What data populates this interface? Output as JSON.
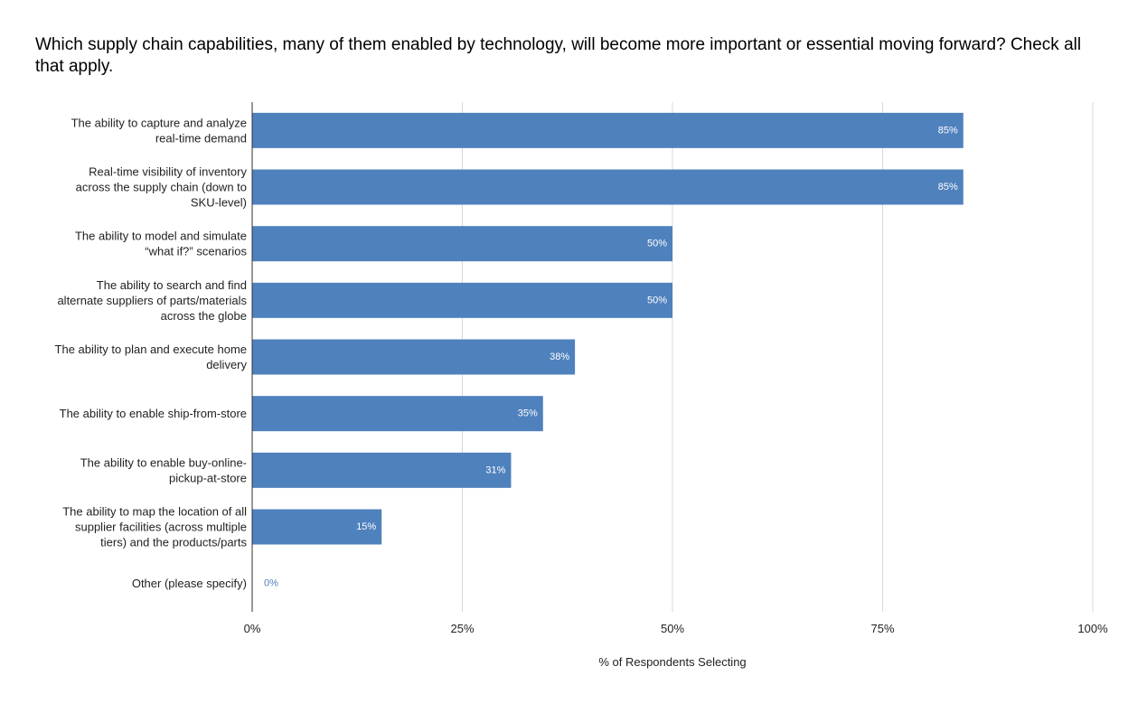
{
  "chart_data": {
    "type": "bar",
    "orientation": "horizontal",
    "title": "Which supply chain capabilities, many of them enabled by technology, will become more important or essential moving forward? Check all that apply.",
    "xlabel": "% of Respondents Selecting",
    "ylabel": "",
    "xlim": [
      0,
      100
    ],
    "x_ticks": [
      "0%",
      "25%",
      "50%",
      "75%",
      "100%"
    ],
    "x_tick_values": [
      0,
      25,
      50,
      75,
      100
    ],
    "grid": true,
    "bar_color": "#4f81bd",
    "categories": [
      [
        "The ability to capture and analyze",
        "real-time demand"
      ],
      [
        "Real-time visibility of inventory",
        "across the supply chain (down to",
        "SKU-level)"
      ],
      [
        "The ability to model and simulate",
        "“what if?” scenarios"
      ],
      [
        "The ability to search and find",
        "alternate suppliers of parts/materials",
        "across the globe"
      ],
      [
        "The ability to plan and execute home",
        "delivery"
      ],
      [
        "The ability to enable ship-from-store"
      ],
      [
        "The ability to enable buy-online-",
        "pickup-at-store"
      ],
      [
        "The ability to map the location of all",
        "supplier facilities (across multiple",
        "tiers) and the products/parts"
      ],
      [
        "Other (please specify)"
      ]
    ],
    "values": [
      84.6,
      84.6,
      50,
      50,
      38.4,
      34.6,
      30.8,
      15.4,
      0
    ],
    "data_labels": [
      "85%",
      "85%",
      "50%",
      "50%",
      "38%",
      "35%",
      "31%",
      "15%",
      "0%"
    ]
  }
}
